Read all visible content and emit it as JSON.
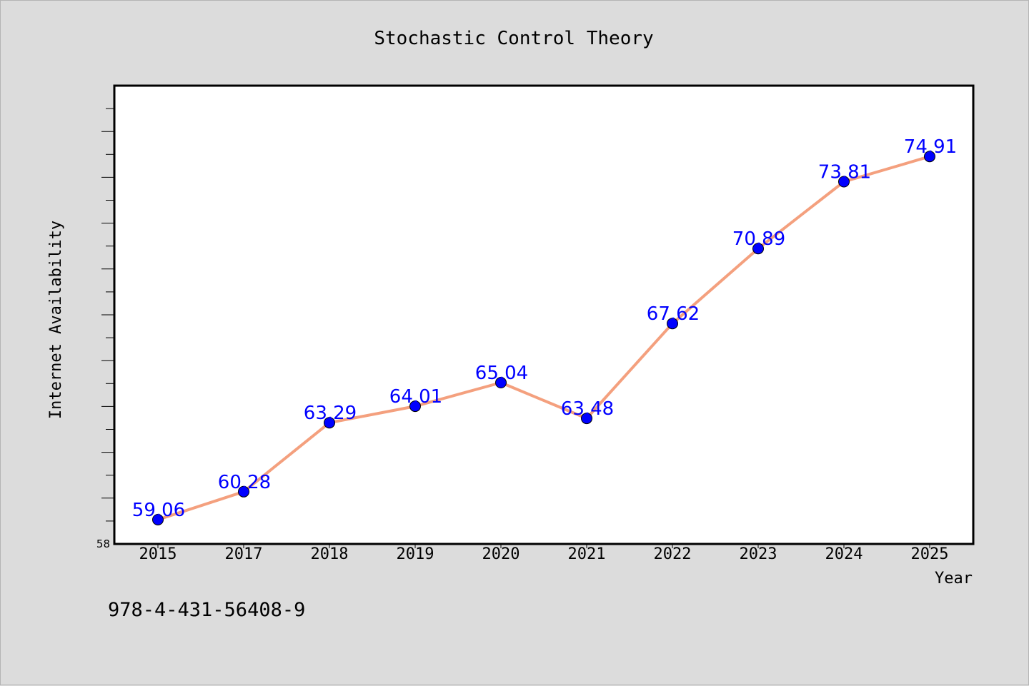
{
  "chart_data": {
    "type": "line",
    "title": "Stochastic Control Theory",
    "xlabel": "Year",
    "ylabel": "Internet Availability",
    "categories": [
      "2015",
      "2017",
      "2018",
      "2019",
      "2020",
      "2021",
      "2022",
      "2023",
      "2024",
      "2025"
    ],
    "values": [
      59.06,
      60.28,
      63.29,
      64.01,
      65.04,
      63.48,
      67.62,
      70.89,
      73.81,
      74.91
    ],
    "data_labels": [
      "59.06",
      "60.28",
      "63.29",
      "64.01",
      "65.04",
      "63.48",
      "67.62",
      "70.89",
      "73.81",
      "74.91"
    ],
    "ylim": [
      58,
      78
    ],
    "ytick_label": "58",
    "grid": false,
    "line_color": "#f4a07e",
    "marker_color": "#0000ff",
    "label_color": "#0000ff",
    "background_color": "#dcdcdc"
  },
  "footer": {
    "isbn": "978-4-431-56408-9"
  }
}
